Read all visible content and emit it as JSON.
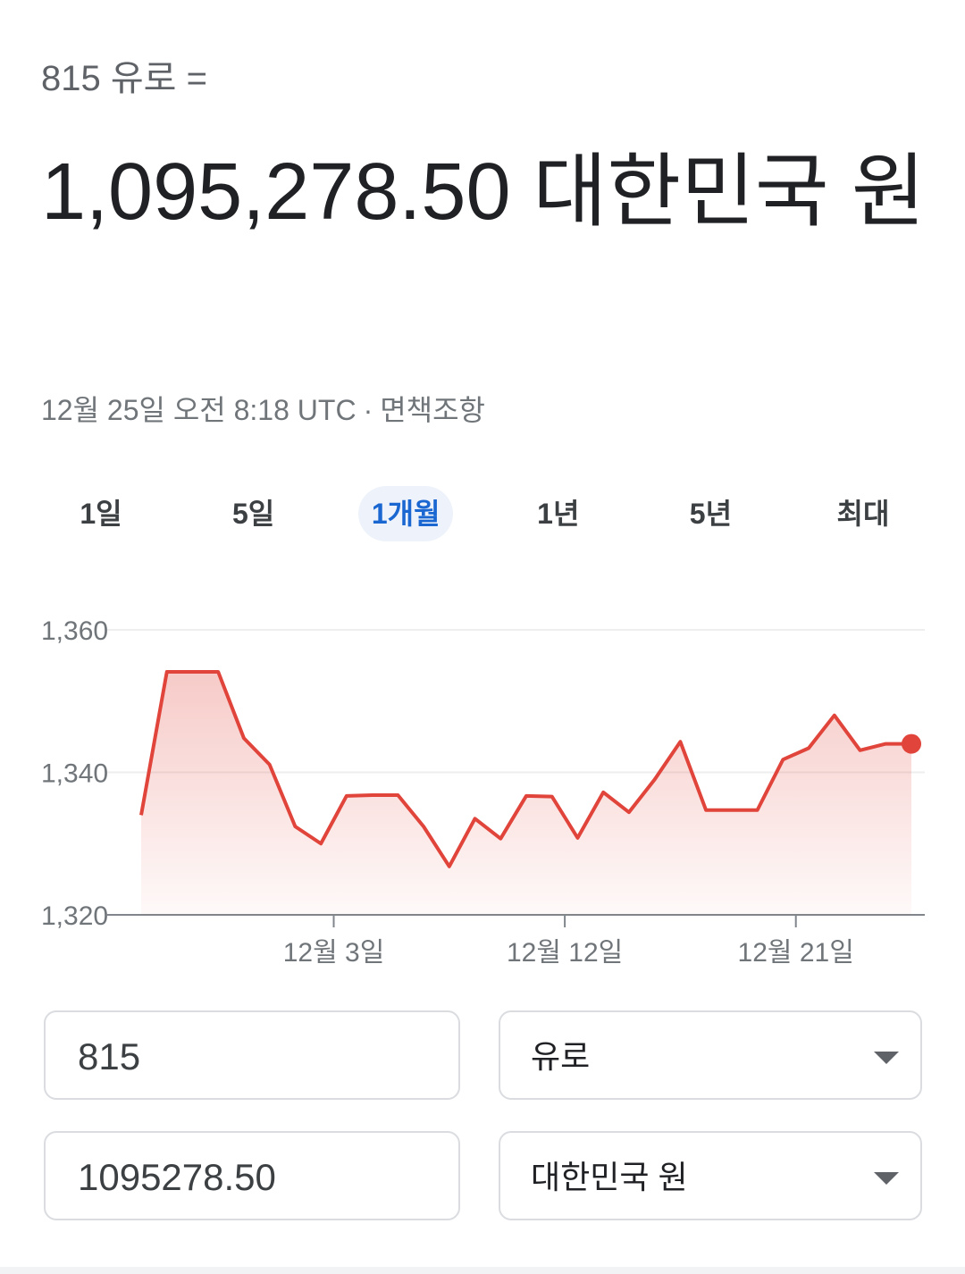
{
  "header": {
    "amount_from": "815 유로 =",
    "result": "1,095,278.50 대한민국 원",
    "timestamp": "12월 25일 오전 8:18 UTC",
    "separator": "·",
    "disclaimer": "면책조항"
  },
  "tabs": {
    "items": [
      "1일",
      "5일",
      "1개월",
      "1년",
      "5년",
      "최대"
    ],
    "selected_index": 2
  },
  "chart_data": {
    "type": "line",
    "color": "#e0443a",
    "x": [
      0,
      1,
      2,
      3,
      4,
      5,
      6,
      7,
      8,
      9,
      10,
      11,
      12,
      13,
      14,
      15,
      16,
      17,
      18,
      19,
      20,
      21,
      22,
      23,
      24,
      25,
      26,
      27,
      28,
      29,
      30
    ],
    "values": [
      1334.0,
      1354.1,
      1354.1,
      1354.1,
      1344.8,
      1341.1,
      1332.4,
      1330.0,
      1336.7,
      1336.8,
      1336.8,
      1332.4,
      1326.8,
      1333.5,
      1330.7,
      1336.7,
      1336.6,
      1330.8,
      1337.2,
      1334.4,
      1339.0,
      1344.3,
      1334.7,
      1334.7,
      1334.7,
      1341.8,
      1343.4,
      1348.0,
      1343.1,
      1344.0,
      1344.0
    ],
    "xlim": [
      0,
      30
    ],
    "ylim": [
      1320,
      1360
    ],
    "yticks": [
      {
        "value": 1320,
        "label": "1,320"
      },
      {
        "value": 1340,
        "label": "1,340"
      },
      {
        "value": 1360,
        "label": "1,360"
      }
    ],
    "xticks": [
      {
        "value": 7.5,
        "label": "12월 3일"
      },
      {
        "value": 16.5,
        "label": "12월 12일"
      },
      {
        "value": 25.5,
        "label": "12월 21일"
      }
    ],
    "grid": true
  },
  "converter": {
    "rows": [
      {
        "amount": "815",
        "currency": "유로"
      },
      {
        "amount": "1095278.50",
        "currency": "대한민국 원"
      }
    ]
  }
}
